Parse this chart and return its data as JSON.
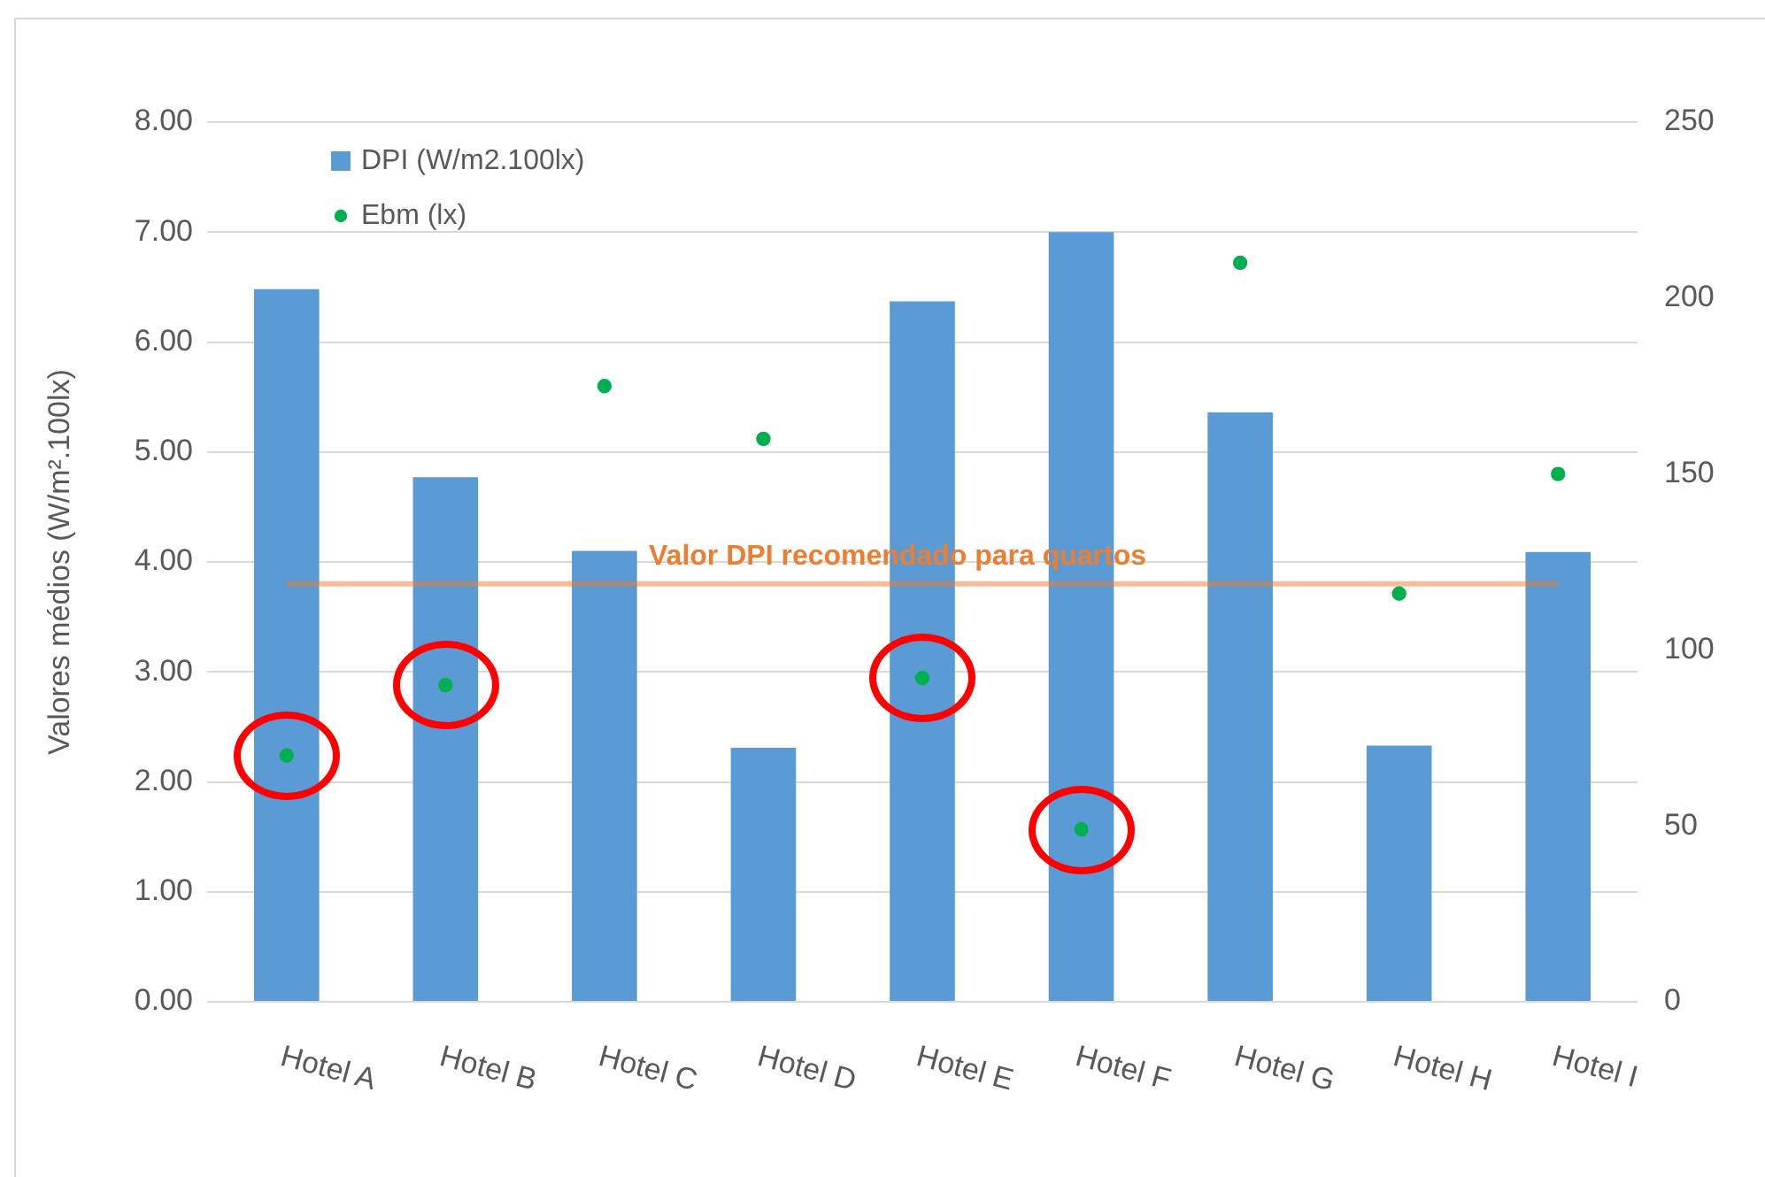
{
  "chart_data": {
    "type": "bar",
    "categories": [
      "Hotel A",
      "Hotel B",
      "Hotel C",
      "Hotel D",
      "Hotel E",
      "Hotel F",
      "Hotel G",
      "Hotel H",
      "Hotel I"
    ],
    "ylabel": "Valores médios (W/m².100lx)",
    "series": [
      {
        "name": "DPI (W/m2.100lx)",
        "color": "#5b9bd5",
        "values": [
          6.48,
          4.77,
          4.1,
          2.31,
          6.37,
          7.0,
          5.36,
          2.33,
          4.09
        ]
      },
      {
        "name": "Ebm (lx)",
        "type": "scatter",
        "axis": "y2",
        "color": "#00b050",
        "values": [
          70,
          90,
          175,
          160,
          92,
          49,
          210,
          116,
          150
        ]
      }
    ],
    "ylim": [
      0,
      8
    ],
    "yticks": [
      {
        "value": 0,
        "label": "0.00"
      },
      {
        "value": 1,
        "label": "1.00"
      },
      {
        "value": 2,
        "label": "2.00"
      },
      {
        "value": 3,
        "label": "3.00"
      },
      {
        "value": 4,
        "label": "4.00"
      },
      {
        "value": 5,
        "label": "5.00"
      },
      {
        "value": 6,
        "label": "6.00"
      },
      {
        "value": 7,
        "label": "7.00"
      },
      {
        "value": 8,
        "label": "8.00"
      }
    ],
    "y2lim": [
      0,
      250
    ],
    "y2ticks": [
      0,
      50,
      100,
      150,
      200,
      250
    ],
    "ref_lines": [
      {
        "axis": "y",
        "value": 3.8,
        "label": "Valor DPI recomendado para quartos",
        "color": "#ed7d31"
      }
    ],
    "grid": "y",
    "legend": "top left",
    "marker": "circle"
  }
}
